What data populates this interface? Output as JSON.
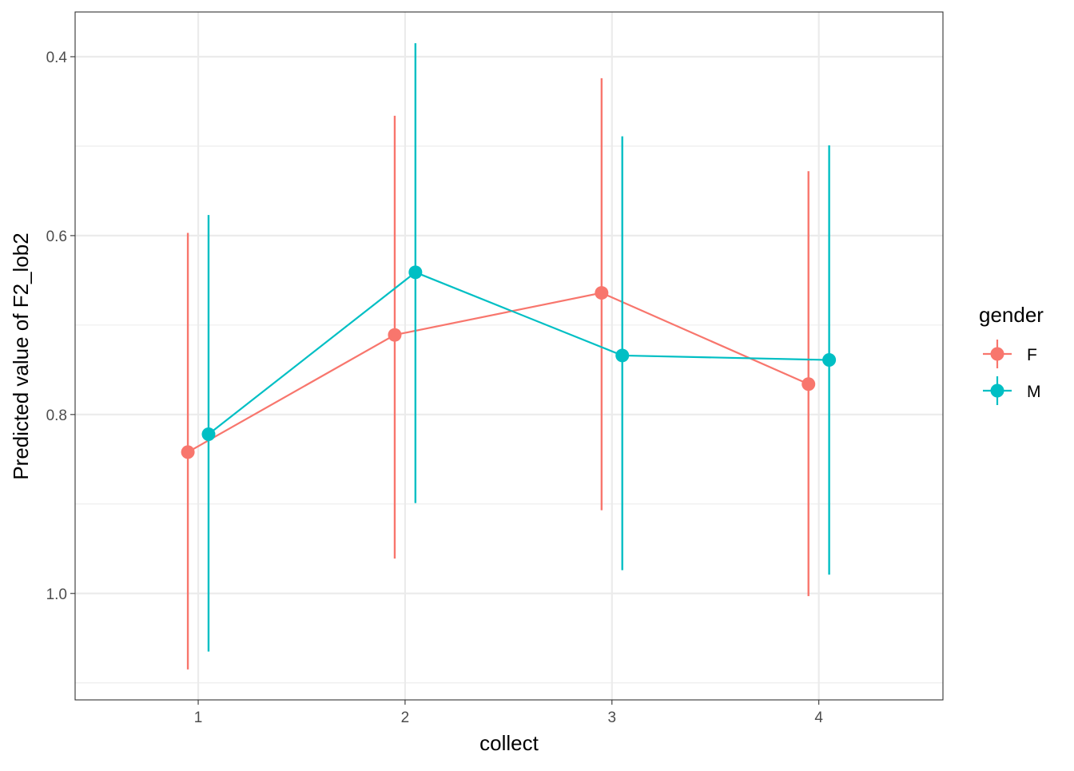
{
  "chart_data": {
    "type": "line",
    "title": "",
    "xlabel": "collect",
    "ylabel": "Predicted value of F2_lob2",
    "x_ticks": [
      "1",
      "2",
      "3",
      "4"
    ],
    "y_ticks": [
      "0.4",
      "0.6",
      "0.8",
      "1.0"
    ],
    "y_tick_values": [
      0.4,
      0.6,
      0.8,
      1.0
    ],
    "xlim": [
      0.405,
      4.6
    ],
    "ylim": [
      0.35,
      1.119
    ],
    "y_reversed": true,
    "grid": true,
    "dodge": 0.05,
    "legend": {
      "title": "gender",
      "placement": "right"
    },
    "series": [
      {
        "name": "F",
        "color": "#F8766D",
        "x": [
          1,
          2,
          3,
          4
        ],
        "y": [
          0.842,
          0.711,
          0.664,
          0.766
        ],
        "lower": [
          0.597,
          0.466,
          0.424,
          0.528
        ],
        "upper": [
          1.085,
          0.961,
          0.907,
          1.003
        ]
      },
      {
        "name": "M",
        "color": "#00BFC4",
        "x": [
          1,
          2,
          3,
          4
        ],
        "y": [
          0.822,
          0.641,
          0.734,
          0.739
        ],
        "lower": [
          0.577,
          0.385,
          0.489,
          0.499
        ],
        "upper": [
          1.065,
          0.899,
          0.974,
          0.979
        ]
      }
    ]
  }
}
